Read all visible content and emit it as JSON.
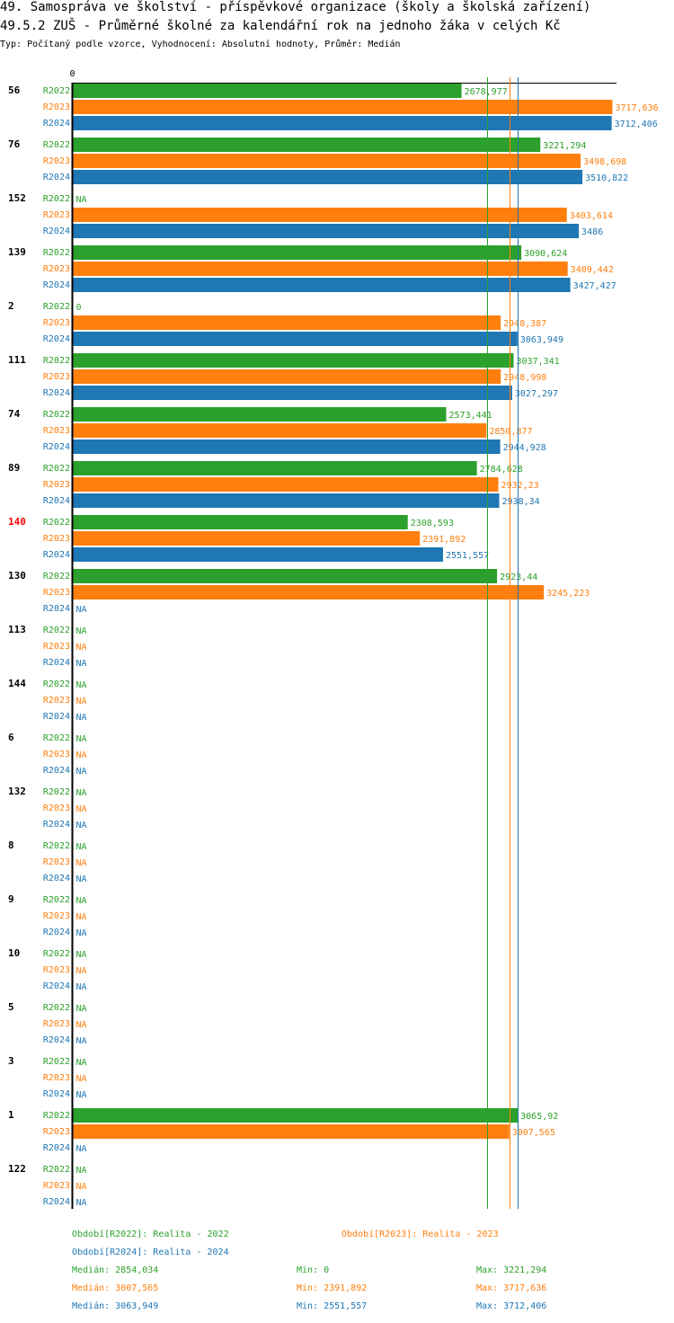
{
  "header": {
    "title": "49. Samospráva ve školství - příspěvkové organizace (školy a školská zařízení)",
    "subtitle": "49.5.2 ZUŠ - Průměrné školné za kalendářní rok na jednoho žáka v celých Kč",
    "meta": "Typ: Počítaný podle vzorce, Vyhodnocení: Absolutní hodnoty, Průměr: Medián"
  },
  "colors": {
    "R2022": "#2ca02c",
    "R2023": "#ff7f0e",
    "R2024": "#1f77b4",
    "highlight": "#ff0000"
  },
  "chart_data": {
    "type": "bar",
    "orientation": "horizontal",
    "title": "49.5.2 ZUŠ - Průměrné školné za kalendářní rok na jednoho žáka v celých Kč",
    "xlim": [
      0,
      3717.636
    ],
    "axis_zero_label": "0",
    "na_label": "NA",
    "highlight_group": "140",
    "series_names": [
      "R2022",
      "R2023",
      "R2024"
    ],
    "groups": [
      {
        "label": "56",
        "values": [
          2678.977,
          3717.636,
          3712.406
        ],
        "labels": [
          "2678,977",
          "3717,636",
          "3712,406"
        ]
      },
      {
        "label": "76",
        "values": [
          3221.294,
          3498.698,
          3510.822
        ],
        "labels": [
          "3221,294",
          "3498,698",
          "3510,822"
        ]
      },
      {
        "label": "152",
        "values": [
          null,
          3403.614,
          3486
        ],
        "labels": [
          "NA",
          "3403,614",
          "3486"
        ]
      },
      {
        "label": "139",
        "values": [
          3090.624,
          3409.442,
          3427.427
        ],
        "labels": [
          "3090,624",
          "3409,442",
          "3427,427"
        ]
      },
      {
        "label": "2",
        "values": [
          0,
          2948.387,
          3063.949
        ],
        "labels": [
          "0",
          "2948,387",
          "3063,949"
        ]
      },
      {
        "label": "111",
        "values": [
          3037.341,
          2948.998,
          3027.297
        ],
        "labels": [
          "3037,341",
          "2948,998",
          "3027,297"
        ]
      },
      {
        "label": "74",
        "values": [
          2573.441,
          2850.877,
          2944.928
        ],
        "labels": [
          "2573,441",
          "2850,877",
          "2944,928"
        ]
      },
      {
        "label": "89",
        "values": [
          2784.628,
          2932.23,
          2938.34
        ],
        "labels": [
          "2784,628",
          "2932,23",
          "2938,34"
        ]
      },
      {
        "label": "140",
        "values": [
          2308.593,
          2391.892,
          2551.557
        ],
        "labels": [
          "2308,593",
          "2391,892",
          "2551,557"
        ]
      },
      {
        "label": "130",
        "values": [
          2923.44,
          3245.223,
          null
        ],
        "labels": [
          "2923,44",
          "3245,223",
          "NA"
        ]
      },
      {
        "label": "113",
        "values": [
          null,
          null,
          null
        ],
        "labels": [
          "NA",
          "NA",
          "NA"
        ]
      },
      {
        "label": "144",
        "values": [
          null,
          null,
          null
        ],
        "labels": [
          "NA",
          "NA",
          "NA"
        ]
      },
      {
        "label": "6",
        "values": [
          null,
          null,
          null
        ],
        "labels": [
          "NA",
          "NA",
          "NA"
        ]
      },
      {
        "label": "132",
        "values": [
          null,
          null,
          null
        ],
        "labels": [
          "NA",
          "NA",
          "NA"
        ]
      },
      {
        "label": "8",
        "values": [
          null,
          null,
          null
        ],
        "labels": [
          "NA",
          "NA",
          "NA"
        ]
      },
      {
        "label": "9",
        "values": [
          null,
          null,
          null
        ],
        "labels": [
          "NA",
          "NA",
          "NA"
        ]
      },
      {
        "label": "10",
        "values": [
          null,
          null,
          null
        ],
        "labels": [
          "NA",
          "NA",
          "NA"
        ]
      },
      {
        "label": "5",
        "values": [
          null,
          null,
          null
        ],
        "labels": [
          "NA",
          "NA",
          "NA"
        ]
      },
      {
        "label": "3",
        "values": [
          null,
          null,
          null
        ],
        "labels": [
          "NA",
          "NA",
          "NA"
        ]
      },
      {
        "label": "1",
        "values": [
          3065.92,
          3007.565,
          null
        ],
        "labels": [
          "3065,92",
          "3007,565",
          "NA"
        ]
      },
      {
        "label": "122",
        "values": [
          null,
          null,
          null
        ],
        "labels": [
          "NA",
          "NA",
          "NA"
        ]
      }
    ],
    "median_lines": [
      {
        "series": "R2022",
        "value": 2854.034
      },
      {
        "series": "R2023",
        "value": 3007.565
      },
      {
        "series": "R2024",
        "value": 3063.949
      }
    ]
  },
  "legend": {
    "periods": [
      {
        "series": "R2022",
        "text": "Období[R2022]: Realita - 2022"
      },
      {
        "series": "R2023",
        "text": "Období[R2023]: Realita - 2023"
      },
      {
        "series": "R2024",
        "text": "Období[R2024]: Realita - 2024"
      }
    ],
    "stats": [
      {
        "series": "R2022",
        "median": "Medián: 2854,034",
        "min": "Min: 0",
        "max": "Max: 3221,294"
      },
      {
        "series": "R2023",
        "median": "Medián: 3007,565",
        "min": "Min: 2391,892",
        "max": "Max: 3717,636"
      },
      {
        "series": "R2024",
        "median": "Medián: 3063,949",
        "min": "Min: 2551,557",
        "max": "Max: 3712,406"
      }
    ]
  }
}
